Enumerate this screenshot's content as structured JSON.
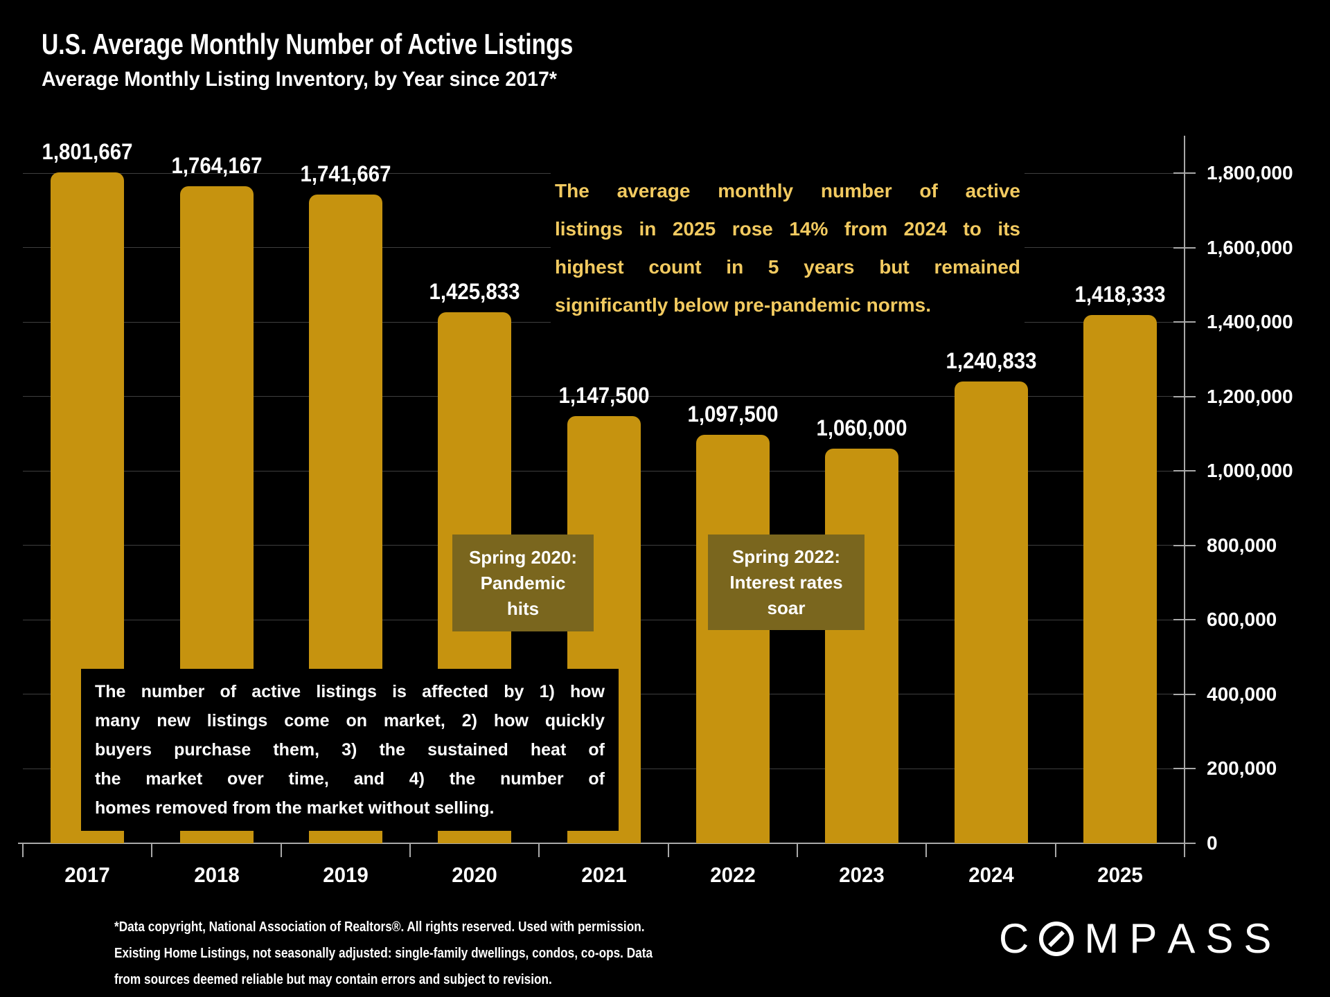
{
  "slide": {
    "title": "U.S. Average Monthly Number of Active Listings",
    "subtitle": "Average Monthly Listing Inventory, by Year since 2017*"
  },
  "chart_data": {
    "type": "bar",
    "title": "U.S. Average Monthly Number of Active Listings",
    "xlabel": "",
    "ylabel": "",
    "categories": [
      "2017",
      "2018",
      "2019",
      "2020",
      "2021",
      "2022",
      "2023",
      "2024",
      "2025"
    ],
    "values": [
      1801667,
      1764167,
      1741667,
      1425833,
      1147500,
      1097500,
      1060000,
      1240833,
      1418333
    ],
    "value_labels": [
      "1,801,667",
      "1,764,167",
      "1,741,667",
      "1,425,833",
      "1,147,500",
      "1,097,500",
      "1,060,000",
      "1,240,833",
      "1,418,333"
    ],
    "ylim": [
      0,
      1800000
    ],
    "ytick_interval": 200000,
    "ytick_labels": [
      "0",
      "200,000",
      "400,000",
      "600,000",
      "800,000",
      "1,000,000",
      "1,200,000",
      "1,400,000",
      "1,600,000",
      "1,800,000"
    ],
    "yaxis_side": "right",
    "grid": true,
    "legend": false
  },
  "annotations": {
    "insight": {
      "lines": [
        "The average monthly number of active",
        "listings in 2025 rose 14% from 2024 to its",
        "highest count in 5 years but remained",
        "significantly below pre-pandemic norms."
      ]
    },
    "spring_2020": {
      "lines": [
        "Spring 2020:",
        "Pandemic",
        "hits"
      ]
    },
    "spring_2022": {
      "lines": [
        "Spring 2022:",
        "Interest rates",
        "soar"
      ]
    },
    "explainer": {
      "lines": [
        "The number of active listings is affected by 1) how",
        "many new listings come on market, 2) how quickly",
        "buyers purchase them, 3) the sustained heat of",
        "the market over time, and 4) the number of",
        "homes removed from the market without selling."
      ]
    }
  },
  "footer": {
    "lines": [
      "*Data copyright, National Association of Realtors®. All rights reserved. Used with permission.",
      "Existing Home Listings, not seasonally adjusted:  single-family dwellings, condos, co-ops. Data",
      "from sources deemed reliable but may contain errors and subject to revision."
    ],
    "logo": "COMPASS"
  },
  "colors": {
    "background": "#000000",
    "bar": "#C6930F",
    "gold_text": "#F2CA60",
    "event_box": "#7A661E",
    "grid": "#3F3F3F",
    "axis": "#A9A9A9",
    "text": "#FFFFFF"
  }
}
